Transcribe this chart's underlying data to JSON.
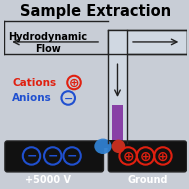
{
  "title": "Sample Extraction",
  "title_fontsize": 10.5,
  "title_fontweight": "bold",
  "bg_color": "#c8cdd6",
  "channel_bg": "#c0c8d4",
  "channel_inner": "#d0d8e2",
  "channel_edge": "#222222",
  "hydrodynamic_label": "Hydrodynamic\nFlow",
  "cation_label": "Cations",
  "anion_label": "Anions",
  "voltage_label": "+5000 V",
  "ground_label": "Ground",
  "cation_color": "#e02010",
  "anion_color": "#2050d0",
  "sample_purple": "#8030a0",
  "sample_blue": "#3080d0",
  "sample_red": "#cc3020",
  "electrode_bg": "#111111",
  "white": "#ffffff"
}
